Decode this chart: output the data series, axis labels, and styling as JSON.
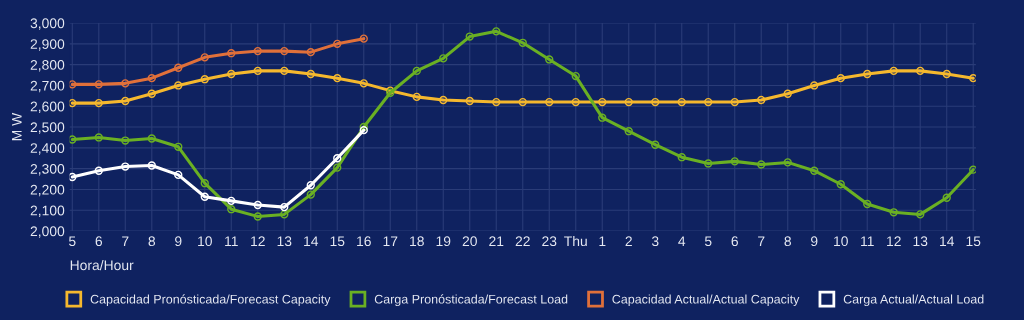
{
  "chart_data": {
    "type": "line",
    "xlabel": "Hora/Hour",
    "ylabel": "M W",
    "categories": [
      "5",
      "6",
      "7",
      "8",
      "9",
      "10",
      "11",
      "12",
      "13",
      "14",
      "15",
      "16",
      "17",
      "18",
      "19",
      "20",
      "21",
      "22",
      "23",
      "Thu",
      "1",
      "2",
      "3",
      "4",
      "5",
      "6",
      "7",
      "8",
      "9",
      "10",
      "11",
      "12",
      "13",
      "14",
      "15"
    ],
    "series": [
      {
        "name": "Capacidad Pronósticada/Forecast Capacity",
        "color": "#f5b82e",
        "values": [
          2615,
          2615,
          2625,
          2660,
          2700,
          2730,
          2755,
          2770,
          2770,
          2755,
          2735,
          2710,
          2675,
          2645,
          2630,
          2625,
          2620,
          2620,
          2620,
          2620,
          2620,
          2620,
          2620,
          2620,
          2620,
          2620,
          2630,
          2660,
          2700,
          2735,
          2755,
          2770,
          2770,
          2755,
          2735
        ]
      },
      {
        "name": "Carga Pronósticada/Forecast Load",
        "color": "#6ab023",
        "values": [
          2440,
          2450,
          2435,
          2445,
          2405,
          2230,
          2105,
          2070,
          2080,
          2175,
          2305,
          2500,
          2665,
          2770,
          2830,
          2935,
          2960,
          2905,
          2825,
          2745,
          2545,
          2480,
          2415,
          2355,
          2325,
          2335,
          2320,
          2330,
          2290,
          2225,
          2130,
          2090,
          2080,
          2160,
          2295
        ]
      },
      {
        "name": "Capacidad Actual/Actual Capacity",
        "color": "#e0703a",
        "values": [
          2705,
          2705,
          2710,
          2735,
          2785,
          2835,
          2855,
          2865,
          2865,
          2860,
          2900,
          2925,
          null,
          null,
          null,
          null,
          null,
          null,
          null,
          null,
          null,
          null,
          null,
          null,
          null,
          null,
          null,
          null,
          null,
          null,
          null,
          null,
          null,
          null,
          null
        ]
      },
      {
        "name": "Carga Actual/Actual Load",
        "color": "#ffffff",
        "values": [
          2260,
          2290,
          2310,
          2315,
          2270,
          2165,
          2145,
          2125,
          2115,
          2220,
          2350,
          2485,
          null,
          null,
          null,
          null,
          null,
          null,
          null,
          null,
          null,
          null,
          null,
          null,
          null,
          null,
          null,
          null,
          null,
          null,
          null,
          null,
          null,
          null,
          null
        ]
      }
    ],
    "ylim": [
      2000,
      3000
    ],
    "yticks": [
      {
        "value": 2000,
        "label": "2,000"
      },
      {
        "value": 2100,
        "label": "2,100"
      },
      {
        "value": 2200,
        "label": "2,200"
      },
      {
        "value": 2300,
        "label": "2,300"
      },
      {
        "value": 2400,
        "label": "2,400"
      },
      {
        "value": 2500,
        "label": "2,500"
      },
      {
        "value": 2600,
        "label": "2,600"
      },
      {
        "value": 2700,
        "label": "2,700"
      },
      {
        "value": 2800,
        "label": "2,800"
      },
      {
        "value": 2900,
        "label": "2,900"
      },
      {
        "value": 3000,
        "label": "3,000"
      }
    ],
    "grid": true,
    "legend": "bottom",
    "marker": "circle",
    "line_style": "solid"
  }
}
